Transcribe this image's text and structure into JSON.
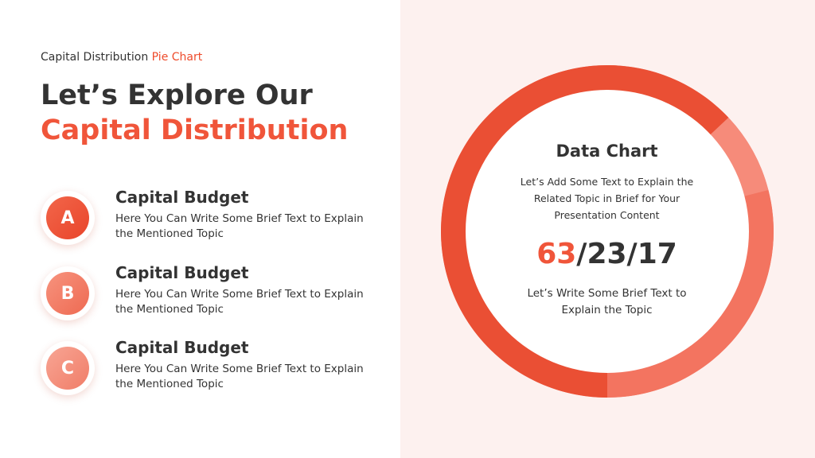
{
  "header": {
    "eyebrow_text": "Capital Distribution",
    "eyebrow_accent": "Pie Chart",
    "title_line1": "Let’s Explore Our",
    "title_line2": "Capital Distribution"
  },
  "items": [
    {
      "letter": "A",
      "title": "Capital Budget",
      "desc": "Here You Can Write Some Brief Text to Explain the Mentioned Topic"
    },
    {
      "letter": "B",
      "title": "Capital Budget",
      "desc": "Here You Can Write Some Brief Text to Explain the Mentioned Topic"
    },
    {
      "letter": "C",
      "title": "Capital Budget",
      "desc": "Here You Can Write Some Brief Text to Explain the Mentioned Topic"
    }
  ],
  "center": {
    "title": "Data Chart",
    "desc": "Let’s Add Some Text to Explain the Related Topic in Brief for Your Presentation Content",
    "figure_highlight": "63",
    "figure_rest": "/23/17",
    "foot": "Let’s Write Some Brief Text to Explain the Topic"
  },
  "colors": {
    "accent": "#f0553a",
    "text": "#333333",
    "panel": "#fdf1ef"
  },
  "chart_data": {
    "type": "pie",
    "style": "donut",
    "values": [
      63,
      8,
      29
    ],
    "slice_colors": [
      "#ea4f34",
      "#f68b7a",
      "#f37460"
    ]
  }
}
